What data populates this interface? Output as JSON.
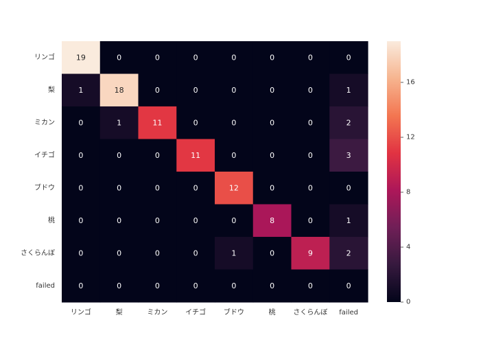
{
  "chart_data": {
    "type": "heatmap",
    "title": "",
    "xlabel": "",
    "ylabel": "",
    "x_categories": [
      "リンゴ",
      "梨",
      "ミカン",
      "イチゴ",
      "ブドウ",
      "桃",
      "さくらんぼ",
      "failed"
    ],
    "y_categories": [
      "リンゴ",
      "梨",
      "ミカン",
      "イチゴ",
      "ブドウ",
      "桃",
      "さくらんぼ",
      "failed"
    ],
    "matrix": [
      [
        19,
        0,
        0,
        0,
        0,
        0,
        0,
        0
      ],
      [
        1,
        18,
        0,
        0,
        0,
        0,
        0,
        1
      ],
      [
        0,
        1,
        11,
        0,
        0,
        0,
        0,
        2
      ],
      [
        0,
        0,
        0,
        11,
        0,
        0,
        0,
        3
      ],
      [
        0,
        0,
        0,
        0,
        12,
        0,
        0,
        0
      ],
      [
        0,
        0,
        0,
        0,
        0,
        8,
        0,
        1
      ],
      [
        0,
        0,
        0,
        0,
        1,
        0,
        9,
        2
      ],
      [
        0,
        0,
        0,
        0,
        0,
        0,
        0,
        0
      ]
    ],
    "value_range": [
      0,
      19
    ],
    "colorbar": {
      "ticks": [
        0,
        4,
        8,
        12,
        16
      ],
      "labels": [
        "0",
        "4",
        "8",
        "12",
        "16"
      ]
    },
    "colormap": [
      "#03051a",
      "#36193e",
      "#701f57",
      "#ad1759",
      "#e13342",
      "#f37651",
      "#f6b48f",
      "#faebdd"
    ],
    "annotation_colors": {
      "light": "#ffffff",
      "dark": "#262626"
    }
  }
}
